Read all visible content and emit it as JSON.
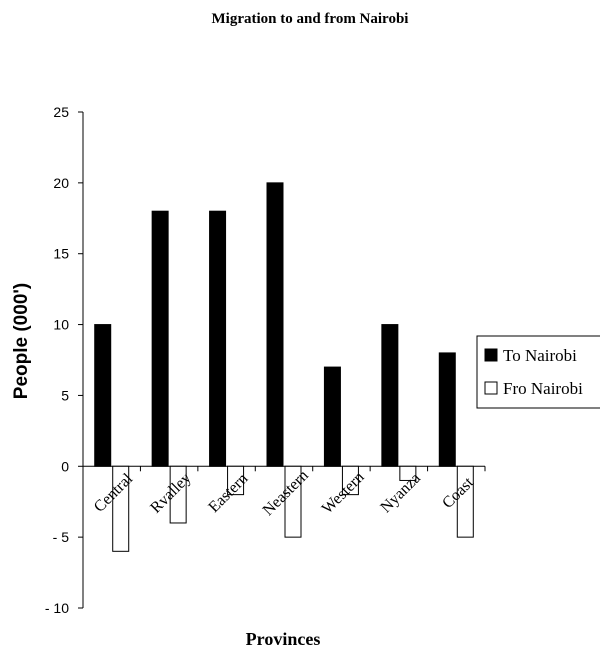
{
  "chart_data": {
    "type": "bar",
    "title": "Migration to and from Nairobi",
    "xlabel": "Provinces",
    "ylabel": "People (000')",
    "categories": [
      "Central",
      "Rvalley",
      "Eastern",
      "Neastern",
      "Western",
      "Nyanza",
      "Coast"
    ],
    "series": [
      {
        "name": "To Nairobi",
        "values": [
          10,
          18,
          18,
          20,
          7,
          10,
          8
        ],
        "color": "#000000"
      },
      {
        "name": "Fro Nairobi",
        "values": [
          -6,
          -4,
          -2,
          -5,
          -2,
          -1,
          -5
        ],
        "color": "#ffffff"
      }
    ],
    "ylim": [
      -10,
      25
    ],
    "yticks": [
      -10,
      -5,
      0,
      5,
      10,
      15,
      20,
      25
    ],
    "ytick_labels": [
      "- 10",
      "- 5",
      "0",
      "5",
      "10",
      "15",
      "20",
      "25"
    ],
    "grid": false,
    "legend": "right"
  }
}
